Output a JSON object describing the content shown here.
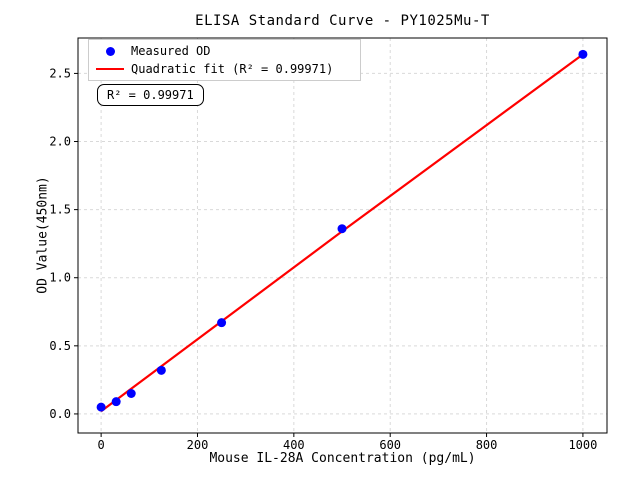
{
  "chart_data": {
    "type": "scatter",
    "title": "ELISA Standard Curve - PY1025Mu-T",
    "xlabel": "Mouse IL-28A Concentration (pg/mL)",
    "ylabel": "OD Value(450nm)",
    "xlim": [
      -48,
      1050
    ],
    "ylim": [
      -0.14,
      2.76
    ],
    "xticks": {
      "values": [
        0,
        200,
        400,
        600,
        800,
        1000
      ],
      "labels": [
        "0",
        "200",
        "400",
        "600",
        "800",
        "1000"
      ]
    },
    "yticks": {
      "values": [
        0,
        0.5,
        1.0,
        1.5,
        2.0,
        2.5
      ],
      "labels": [
        "0.0",
        "0.5",
        "1.0",
        "1.5",
        "2.0",
        "2.5"
      ]
    },
    "grid": true,
    "grid_color": "#d9d9d9",
    "legend_position": "upper-left",
    "series": [
      {
        "name": "Measured OD",
        "type": "scatter",
        "color": "#0000ff",
        "x": [
          0,
          31.25,
          62.5,
          125,
          250,
          500,
          1000
        ],
        "y": [
          0.05,
          0.09,
          0.15,
          0.32,
          0.67,
          1.36,
          2.64
        ]
      },
      {
        "name": "Quadratic fit (R² = 0.99971)",
        "type": "line",
        "color": "#ff0000",
        "x": [
          0,
          500,
          1000
        ],
        "y": [
          0.02,
          1.34,
          2.64
        ]
      }
    ],
    "annotation": {
      "text": "R² = 0.99971"
    },
    "r_squared": "0.99971"
  }
}
